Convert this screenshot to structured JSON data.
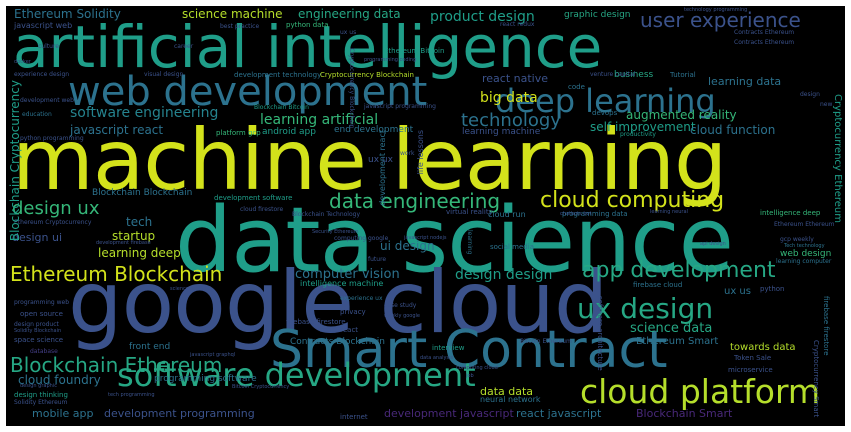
{
  "canvas": {
    "background": "#000000",
    "border": "#ffffff"
  },
  "palette": [
    "#fde725",
    "#b5de2b",
    "#35b779",
    "#1f9e89",
    "#26828e",
    "#31688e",
    "#3e4989",
    "#482878",
    "#440154"
  ],
  "words": {
    "w01": "machine learning",
    "w02": "data science",
    "w03": "artificial intelligence",
    "w04": "google cloud",
    "w05": "Smart Contract",
    "w06": "web development",
    "w07": "deep learning",
    "w08": "cloud platform",
    "w09": "software development",
    "w10": "ux design",
    "w11": "cloud computing",
    "w12": "data engineering",
    "w13": "app development",
    "w14": "Ethereum Blockchain",
    "w15": "Blockchain Ethereum",
    "w16": "user experience",
    "w17": "design ux",
    "w18": "technology",
    "w19": "software engineering",
    "w20": "learning artificial",
    "w21": "big data",
    "w22": "design design",
    "w23": "computer vision",
    "w24": "science data",
    "w25": "product design",
    "w26": "Ethereum Solidity",
    "w27": "science machine",
    "w28": "engineering data",
    "w29": "augmented reality",
    "w30": "self improvement",
    "w31": "cloud function",
    "w32": "react native",
    "w33": "learning data",
    "w34": "javascript react",
    "w35": "learning deep",
    "w36": "design ui",
    "w37": "startup",
    "w38": "tech",
    "w39": "ui design",
    "w40": "cloud foundry",
    "w41": "data data",
    "w42": "mobile app",
    "w43": "development programming",
    "w44": "development javascript",
    "w45": "react javascript",
    "w46": "Blockchain Smart",
    "w47": "Ethereum Smart",
    "w48": "towards data",
    "w49": "Blockchain Cryptocurrency",
    "w50": "Cryptocurrency Ethereum",
    "w51": "ux us",
    "w52": "web design",
    "w53": "Blockchain Blockchain",
    "w54": "end development",
    "w55": "learning machine",
    "w56": "android app",
    "w57": "ux ux",
    "w58": "graphic design",
    "w59": "development technology",
    "w60": "Cryptocurrency Blockchain",
    "w61": "javascript web",
    "w62": "python data",
    "w63": "best practice",
    "w64": "Ethereum Bitcoin",
    "w65": "experience design",
    "w66": "visual design",
    "w67": "development web",
    "w68": "Blockchain Bitcoin",
    "w69": "javascript programming",
    "w70": "education",
    "w71": "business",
    "w72": "Tutorial",
    "w73": "code",
    "w74": "platform gcp",
    "w75": "end development",
    "w76": "learning machine",
    "w77": "virtual reality",
    "w78": "life lessons",
    "w79": "cloud run",
    "w80": "development react",
    "w81": "Blockchain Technology",
    "w82": "development software",
    "w83": "intelligence machine",
    "w84": "programming data",
    "w85": "social media",
    "w86": "firebase cloud",
    "w87": "front end",
    "w88": "Contracts Blockchain",
    "w89": "programming software",
    "w90": "neural network",
    "w91": "internet",
    "w92": "interview",
    "w93": "privacy",
    "w94": "case study",
    "w95": "firebase firestore",
    "w96": "react react",
    "w97": "open source",
    "w98": "space science",
    "w99": "database",
    "w100": "design thinking",
    "w101": "Solidity Ethereum",
    "w102": "Token Sale",
    "w103": "microservice",
    "w104": "python",
    "w105": "intelligence deep",
    "w106": "Ethereum Ethereum",
    "w107": "gcp weekly",
    "w108": "learning computer",
    "w109": "Tech technology",
    "w110": "Contracts Ethereum",
    "w111": "Cryptocurrency Smart",
    "w112": "firebase firestore",
    "w113": "software architecture",
    "w114": "Bitcoin Ethereum",
    "w115": "computing google",
    "w116": "future",
    "w117": "Security Ethereum",
    "w118": "cloud firestore",
    "w119": "development firebase",
    "w120": "productivity",
    "w121": "devops",
    "w122": "Ethereum Cryptocurrency",
    "w123": "python programming",
    "w124": "startup",
    "w125": "work",
    "w126": "Cryptocurrency Blockchain",
    "w127": "design design",
    "w128": "experience ux",
    "w129": "Bitcoin Cryptocurrency",
    "w130": "programming web",
    "w131": "design product",
    "w132": "Solidity Blockchain",
    "w133": "design graphic",
    "w134": "tech programming",
    "w135": "javascript graphql",
    "w136": "culture",
    "w137": "career",
    "w138": "Contracts Ethereum",
    "w139": "docker",
    "w140": "programming coding",
    "w141": "venture capital",
    "w142": "chatbots bot",
    "w143": "learning neural",
    "w144": "api design",
    "w145": "weekly google",
    "w146": "firebase cloud",
    "w147": "react redux",
    "w148": "technology programming",
    "w149": "ux us",
    "w150": "javascript nodejs",
    "w151": "data visualization",
    "w152": "new",
    "w153": "design",
    "w154": "Token Blockchain",
    "w155": "web development",
    "w156": "science artificial",
    "w157": "ux",
    "w158": "data analysis",
    "w159": "computing cloud",
    "w160": "job",
    "w161": "design ux",
    "w162": "learning"
  }
}
